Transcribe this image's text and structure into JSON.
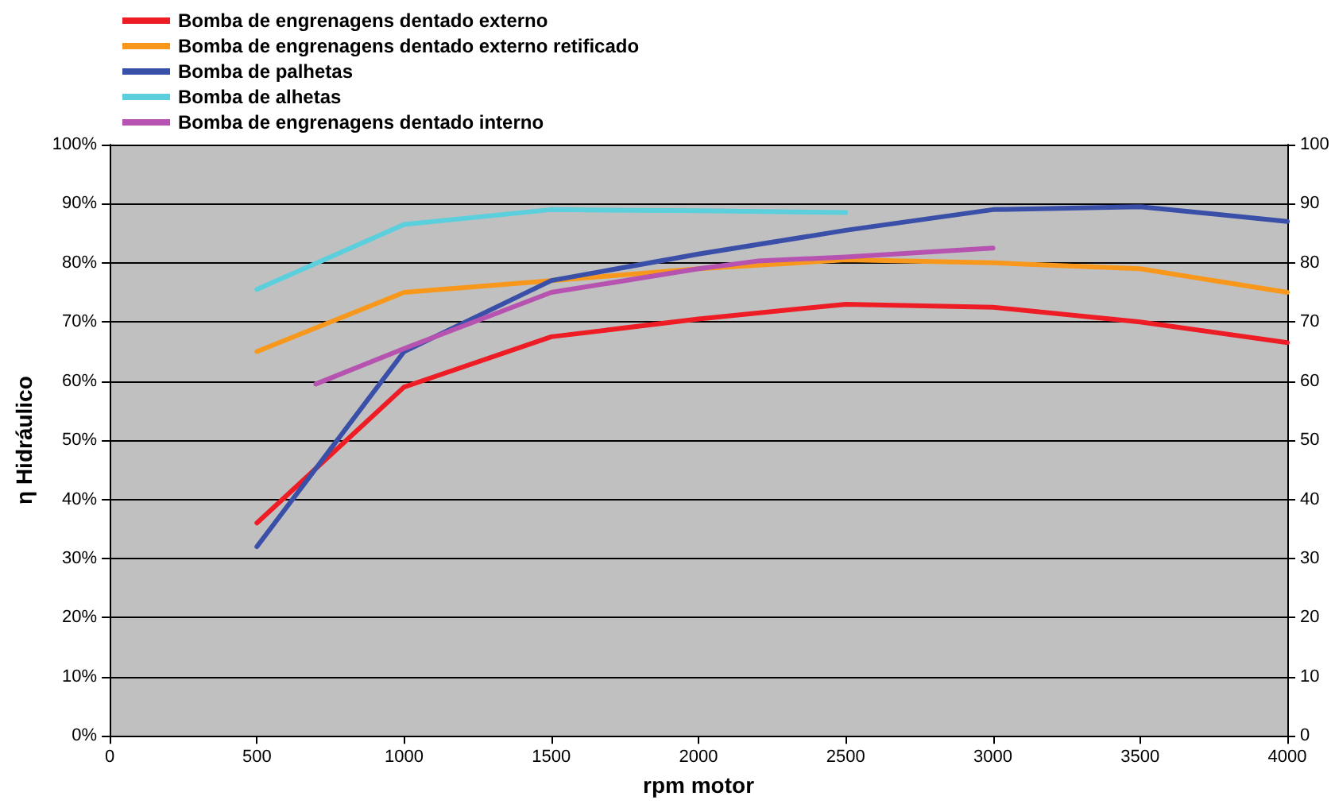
{
  "chart_data": {
    "type": "line",
    "xlabel": "rpm motor",
    "ylabel": "η Hidráulico",
    "xlim": [
      0,
      4000
    ],
    "xticks": [
      0,
      500,
      1000,
      1500,
      2000,
      2500,
      3000,
      3500,
      4000
    ],
    "ylim": [
      0,
      100
    ],
    "yticks": [
      {
        "value": 0,
        "label": "0%"
      },
      {
        "value": 10,
        "label": "10%"
      },
      {
        "value": 20,
        "label": "20%"
      },
      {
        "value": 30,
        "label": "30%"
      },
      {
        "value": 40,
        "label": "40%"
      },
      {
        "value": 50,
        "label": "50%"
      },
      {
        "value": 60,
        "label": "60%"
      },
      {
        "value": 70,
        "label": "70%"
      },
      {
        "value": 80,
        "label": "80%"
      },
      {
        "value": 90,
        "label": "90%"
      },
      {
        "value": 100,
        "label": "100%"
      }
    ],
    "y2lim": [
      0,
      100
    ],
    "y2ticks": [
      0,
      10,
      20,
      30,
      40,
      50,
      60,
      70,
      80,
      90,
      100
    ],
    "grid": "y",
    "legend": "top left",
    "marker": "none",
    "line_style": "solid",
    "series": [
      {
        "name": "Bomba de engrenagens dentado externo",
        "color": "#ee1c25",
        "x": [
          500,
          1000,
          1500,
          2000,
          2500,
          3000,
          3500,
          4000
        ],
        "values": [
          36,
          59,
          67.5,
          70.5,
          73,
          72.5,
          70,
          66.5
        ]
      },
      {
        "name": "Bomba de engrenagens dentado externo retificado",
        "color": "#f7981d",
        "x": [
          500,
          1000,
          1500,
          2000,
          2500,
          3000,
          3500,
          4000
        ],
        "values": [
          65,
          75,
          77,
          79,
          80.5,
          80,
          79,
          75
        ]
      },
      {
        "name": "Bomba de palhetas",
        "color": "#3a50a8",
        "x": [
          500,
          1000,
          1500,
          2000,
          2500,
          3000,
          3500,
          4000
        ],
        "values": [
          32,
          65,
          77,
          81.5,
          85.5,
          89,
          89.5,
          87
        ]
      },
      {
        "name": "Bomba de alhetas",
        "color": "#5ccfdc",
        "x": [
          500,
          1000,
          1500,
          2000,
          2500
        ],
        "values": [
          75.5,
          86.5,
          89,
          88.8,
          88.5
        ]
      },
      {
        "name": "Bomba de engrenagens dentado interno",
        "color": "#b652b0",
        "x": [
          700,
          1000,
          1500,
          2000,
          2200,
          2500,
          3000
        ],
        "values": [
          59.5,
          65.5,
          75,
          79,
          80.3,
          81,
          82.5
        ]
      }
    ]
  }
}
